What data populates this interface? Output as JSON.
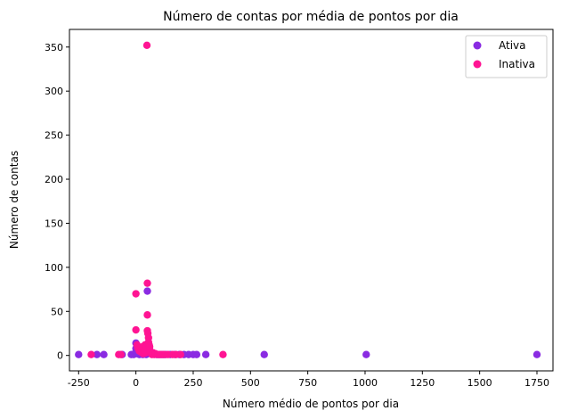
{
  "chart_data": {
    "type": "scatter",
    "title": "Número de contas por média de pontos por dia",
    "xlabel": "Número médio de pontos por dia",
    "ylabel": "Número de contas",
    "xlim": [
      -290,
      1820
    ],
    "ylim": [
      -17.5,
      370
    ],
    "xticks": [
      -250,
      0,
      250,
      500,
      750,
      1000,
      1250,
      1500,
      1750
    ],
    "yticks": [
      0,
      50,
      100,
      150,
      200,
      250,
      300,
      350
    ],
    "grid": false,
    "legend_position": "top-right",
    "series": [
      {
        "name": "Ativa",
        "color": "#8a2be2",
        "points": [
          [
            -250,
            1
          ],
          [
            -170,
            1
          ],
          [
            -140,
            1
          ],
          [
            -60,
            1
          ],
          [
            -20,
            1
          ],
          [
            -10,
            1
          ],
          [
            0,
            14
          ],
          [
            0,
            8
          ],
          [
            0,
            4
          ],
          [
            5,
            2
          ],
          [
            10,
            3
          ],
          [
            15,
            1
          ],
          [
            20,
            5
          ],
          [
            25,
            2
          ],
          [
            30,
            1
          ],
          [
            35,
            3
          ],
          [
            40,
            2
          ],
          [
            45,
            1
          ],
          [
            50,
            73
          ],
          [
            55,
            9
          ],
          [
            60,
            6
          ],
          [
            65,
            4
          ],
          [
            70,
            3
          ],
          [
            75,
            2
          ],
          [
            80,
            2
          ],
          [
            90,
            1
          ],
          [
            100,
            1
          ],
          [
            110,
            1
          ],
          [
            120,
            1
          ],
          [
            130,
            1
          ],
          [
            150,
            1
          ],
          [
            170,
            1
          ],
          [
            190,
            1
          ],
          [
            210,
            1
          ],
          [
            230,
            1
          ],
          [
            250,
            1
          ],
          [
            265,
            1
          ],
          [
            305,
            1
          ],
          [
            560,
            1
          ],
          [
            1005,
            1
          ],
          [
            1750,
            1
          ]
        ]
      },
      {
        "name": "Inativa",
        "color": "#ff1493",
        "points": [
          [
            -195,
            1
          ],
          [
            -75,
            1
          ],
          [
            -65,
            1
          ],
          [
            0,
            70
          ],
          [
            0,
            29
          ],
          [
            5,
            12
          ],
          [
            8,
            9
          ],
          [
            12,
            7
          ],
          [
            15,
            5
          ],
          [
            20,
            8
          ],
          [
            22,
            4
          ],
          [
            25,
            6
          ],
          [
            28,
            3
          ],
          [
            30,
            10
          ],
          [
            32,
            2
          ],
          [
            35,
            7
          ],
          [
            38,
            5
          ],
          [
            40,
            12
          ],
          [
            42,
            3
          ],
          [
            45,
            9
          ],
          [
            48,
            352
          ],
          [
            50,
            82
          ],
          [
            50,
            46
          ],
          [
            50,
            28
          ],
          [
            52,
            25
          ],
          [
            55,
            20
          ],
          [
            55,
            15
          ],
          [
            58,
            12
          ],
          [
            60,
            10
          ],
          [
            60,
            6
          ],
          [
            62,
            4
          ],
          [
            65,
            3
          ],
          [
            68,
            2
          ],
          [
            70,
            1
          ],
          [
            75,
            3
          ],
          [
            80,
            1
          ],
          [
            85,
            2
          ],
          [
            95,
            1
          ],
          [
            105,
            1
          ],
          [
            115,
            1
          ],
          [
            125,
            1
          ],
          [
            140,
            1
          ],
          [
            160,
            1
          ],
          [
            175,
            1
          ],
          [
            195,
            1
          ],
          [
            380,
            1
          ]
        ]
      }
    ]
  }
}
